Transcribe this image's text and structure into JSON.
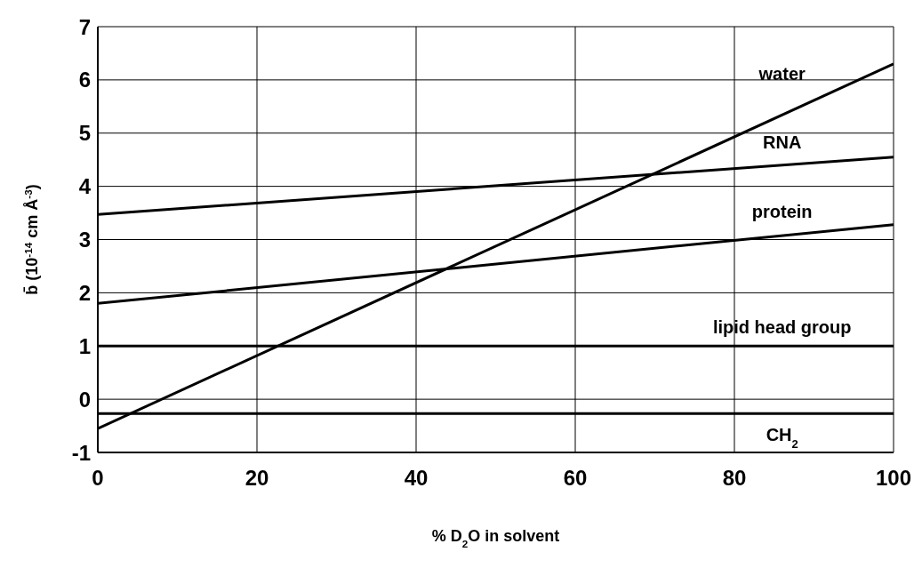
{
  "chart_data": {
    "type": "line",
    "xlabel": "% D$_{2}$O in solvent",
    "ylabel": "b̄ (10$^{-14}$ cm Å$^{-3}$)",
    "xlim": [
      0,
      100
    ],
    "xticks": [
      0,
      20,
      40,
      60,
      80,
      100
    ],
    "ylim": [
      -1,
      7
    ],
    "yticks": [
      -1,
      0,
      1,
      2,
      3,
      4,
      5,
      6,
      7
    ],
    "grid": true,
    "legend": false,
    "marker": "none",
    "line_style": "solid",
    "x": [
      0,
      100
    ],
    "series": [
      {
        "name": "water",
        "color": "#000000",
        "values": [
          -0.55,
          6.3
        ]
      },
      {
        "name": "RNA",
        "color": "#000000",
        "values": [
          3.47,
          4.55
        ]
      },
      {
        "name": "protein",
        "color": "#000000",
        "values": [
          1.8,
          3.28
        ]
      },
      {
        "name": "lipid head group",
        "color": "#000000",
        "values": [
          1,
          1
        ]
      },
      {
        "name": "CH$_{2}$",
        "color": "#000000",
        "values": [
          -0.27,
          -0.27
        ]
      }
    ]
  }
}
